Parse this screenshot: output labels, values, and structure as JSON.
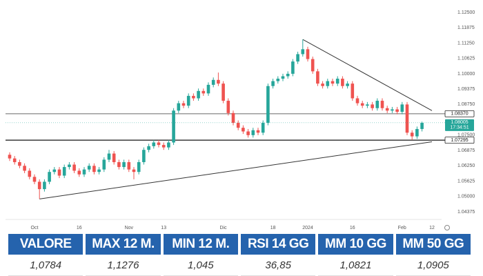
{
  "chart_data": {
    "type": "candlestick",
    "categories": [
      null,
      null,
      null,
      null,
      null,
      "Oct",
      null,
      null,
      null,
      null,
      null,
      null,
      null,
      null,
      "16",
      null,
      null,
      null,
      null,
      null,
      null,
      null,
      null,
      null,
      "Nov",
      null,
      null,
      null,
      null,
      null,
      null,
      "13",
      null,
      null,
      null,
      null,
      null,
      null,
      null,
      null,
      null,
      null,
      null,
      "Dic",
      null,
      null,
      null,
      null,
      null,
      null,
      null,
      null,
      null,
      "18",
      null,
      null,
      null,
      null,
      null,
      null,
      "2024",
      null,
      null,
      null,
      null,
      null,
      null,
      null,
      null,
      "16",
      null,
      null,
      null,
      null,
      null,
      null,
      null,
      null,
      null,
      "Feb",
      null,
      null,
      null,
      null,
      null,
      "12"
    ],
    "open": [
      1.067,
      1.0655,
      1.064,
      1.0625,
      1.0605,
      1.058,
      1.056,
      1.053,
      1.056,
      1.06,
      1.061,
      1.0585,
      1.062,
      1.063,
      1.0605,
      1.059,
      1.061,
      1.0625,
      1.06,
      1.061,
      1.065,
      1.0675,
      1.064,
      1.062,
      1.064,
      1.061,
      1.06,
      1.064,
      1.069,
      1.0705,
      1.072,
      1.071,
      1.07,
      1.072,
      1.085,
      1.088,
      1.087,
      1.091,
      1.09,
      1.093,
      1.092,
      1.0955,
      1.0975,
      1.096,
      1.089,
      1.084,
      1.08,
      1.078,
      1.0765,
      1.075,
      1.077,
      1.076,
      1.08,
      1.095,
      1.097,
      1.098,
      1.099,
      1.1,
      1.105,
      1.108,
      1.11,
      1.106,
      1.101,
      1.096,
      1.095,
      1.097,
      1.096,
      1.098,
      1.095,
      1.096,
      1.09,
      1.088,
      1.087,
      1.0875,
      1.086,
      1.089,
      1.086,
      1.085,
      1.0855,
      1.0845,
      1.0875,
      1.076,
      1.0745,
      1.0775,
      null,
      null
    ],
    "high": [
      1.068,
      1.0665,
      1.065,
      1.0635,
      1.0615,
      1.059,
      1.057,
      1.057,
      1.061,
      1.062,
      1.062,
      1.063,
      1.064,
      1.064,
      1.0615,
      1.062,
      1.0635,
      1.0635,
      1.062,
      1.066,
      1.069,
      1.0685,
      1.065,
      1.065,
      1.065,
      1.062,
      1.065,
      1.07,
      1.0715,
      1.073,
      1.073,
      1.072,
      1.073,
      1.086,
      1.089,
      1.089,
      1.092,
      1.092,
      1.094,
      1.094,
      1.0965,
      1.0985,
      1.1005,
      1.097,
      1.09,
      1.085,
      1.081,
      1.079,
      1.0775,
      1.078,
      1.078,
      1.081,
      1.096,
      1.098,
      1.099,
      1.1,
      1.101,
      1.106,
      1.109,
      1.114,
      1.111,
      1.107,
      1.102,
      1.097,
      1.098,
      1.098,
      1.099,
      1.099,
      1.097,
      1.097,
      1.091,
      1.089,
      1.0885,
      1.0885,
      1.09,
      1.09,
      1.087,
      1.0865,
      1.0865,
      1.0885,
      1.0885,
      1.077,
      1.0785,
      1.0805,
      null,
      null
    ],
    "low": [
      1.0645,
      1.063,
      1.0615,
      1.0595,
      1.057,
      1.055,
      1.049,
      1.052,
      1.055,
      1.059,
      1.0575,
      1.0575,
      1.061,
      1.0595,
      1.058,
      1.058,
      1.06,
      1.059,
      1.059,
      1.06,
      1.064,
      1.063,
      1.061,
      1.061,
      1.06,
      1.057,
      1.059,
      1.063,
      1.068,
      1.0695,
      1.07,
      1.069,
      1.069,
      1.071,
      1.084,
      1.086,
      1.086,
      1.089,
      1.089,
      1.091,
      1.091,
      1.0945,
      1.095,
      1.088,
      1.083,
      1.079,
      1.077,
      1.0755,
      1.074,
      1.074,
      1.075,
      1.075,
      1.079,
      1.094,
      1.096,
      1.097,
      1.098,
      1.099,
      1.104,
      1.107,
      1.105,
      1.1,
      1.095,
      1.094,
      1.094,
      1.095,
      1.095,
      1.094,
      1.094,
      1.089,
      1.087,
      1.086,
      1.086,
      1.085,
      1.085,
      1.085,
      1.084,
      1.084,
      1.0835,
      1.0835,
      1.075,
      1.073,
      1.0735,
      1.0765,
      null,
      null
    ],
    "close": [
      1.0655,
      1.064,
      1.0625,
      1.0605,
      1.058,
      1.056,
      1.053,
      1.056,
      1.06,
      1.061,
      1.0585,
      1.062,
      1.063,
      1.0605,
      1.059,
      1.061,
      1.0625,
      1.06,
      1.061,
      1.065,
      1.0675,
      1.064,
      1.062,
      1.064,
      1.061,
      1.06,
      1.064,
      1.069,
      1.0705,
      1.072,
      1.071,
      1.07,
      1.072,
      1.085,
      1.088,
      1.087,
      1.091,
      1.09,
      1.093,
      1.092,
      1.0955,
      1.0975,
      1.096,
      1.089,
      1.084,
      1.08,
      1.078,
      1.0765,
      1.075,
      1.077,
      1.076,
      1.08,
      1.095,
      1.097,
      1.098,
      1.099,
      1.1,
      1.105,
      1.108,
      1.11,
      1.106,
      1.101,
      1.096,
      1.095,
      1.097,
      1.096,
      1.098,
      1.095,
      1.096,
      1.09,
      1.088,
      1.087,
      1.0875,
      1.086,
      1.089,
      1.086,
      1.085,
      1.0855,
      1.0845,
      1.0875,
      1.076,
      1.0745,
      1.0775,
      1.08,
      null,
      null
    ],
    "up_color": "#26a69a",
    "down_color": "#ef5350",
    "ylim": [
      1.04375,
      1.125
    ],
    "yticks": [
      {
        "value": 1.04375,
        "label": "1.04375"
      },
      {
        "value": 1.05,
        "label": "1.05000"
      },
      {
        "value": 1.05625,
        "label": "1.05625"
      },
      {
        "value": 1.0625,
        "label": "1.06250"
      },
      {
        "value": 1.06875,
        "label": "1.06875"
      },
      {
        "value": 1.075,
        "label": "1.07500"
      },
      {
        "value": 1.0875,
        "label": "1.08750"
      },
      {
        "value": 1.09375,
        "label": "1.09375"
      },
      {
        "value": 1.1,
        "label": "1.10000"
      },
      {
        "value": 1.10625,
        "label": "1.10625"
      },
      {
        "value": 1.1125,
        "label": "1.11250"
      },
      {
        "value": 1.11875,
        "label": "1.11875"
      },
      {
        "value": 1.125,
        "label": "1.12500"
      }
    ],
    "grid": false,
    "levels": [
      {
        "value": 1.0837,
        "label": "1.08370"
      },
      {
        "value": 1.07295,
        "label": "1.07295"
      }
    ],
    "last_price": {
      "value": 1.08005,
      "label": "1.08005",
      "time": "17:34:51",
      "color": "#26a69a"
    },
    "trendlines": [
      {
        "x": [
          6,
          85
        ],
        "y": [
          1.049,
          1.0723
        ]
      },
      {
        "x": [
          59,
          85
        ],
        "y": [
          1.114,
          1.085
        ]
      }
    ]
  },
  "table": {
    "headers": [
      "VALORE",
      "MAX 12 M.",
      "MIN 12 M.",
      "RSI 14 GG",
      "MM 10 GG",
      "MM 50 GG"
    ],
    "rows": [
      [
        "1,0784",
        "1,1276",
        "1,045",
        "36,85",
        "1,0821",
        "1,0905"
      ]
    ]
  }
}
